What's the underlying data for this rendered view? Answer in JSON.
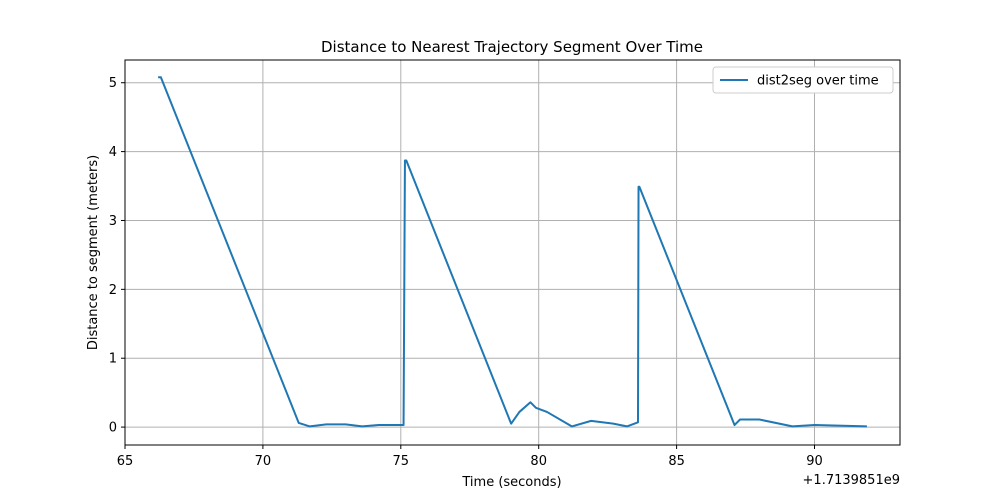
{
  "chart_data": {
    "type": "line",
    "title": "Distance to Nearest Trajectory Segment Over Time",
    "xlabel": "Time (seconds)",
    "ylabel": "Distance to segment (meters)",
    "x_offset_label": "+1.7139851e9",
    "xlim": [
      65,
      93.1
    ],
    "ylim": [
      -0.26,
      5.33
    ],
    "xticks": [
      65,
      70,
      75,
      80,
      85,
      90
    ],
    "yticks": [
      0,
      1,
      2,
      3,
      4,
      5
    ],
    "grid": true,
    "legend": "top-right",
    "series": [
      {
        "name": "dist2seg over time",
        "color": "#1f77b4",
        "x": [
          66.2,
          66.3,
          71.3,
          71.7,
          72.3,
          73.0,
          73.6,
          74.2,
          75.1,
          75.15,
          75.2,
          79.0,
          79.3,
          79.7,
          79.9,
          80.3,
          81.2,
          81.9,
          82.7,
          83.2,
          83.6,
          83.62,
          83.65,
          87.1,
          87.3,
          88.0,
          89.2,
          90.0,
          91.9
        ],
        "y": [
          5.08,
          5.08,
          0.06,
          0.01,
          0.04,
          0.04,
          0.01,
          0.03,
          0.03,
          3.87,
          3.87,
          0.05,
          0.22,
          0.36,
          0.28,
          0.22,
          0.01,
          0.09,
          0.05,
          0.01,
          0.07,
          3.49,
          3.49,
          0.03,
          0.11,
          0.11,
          0.01,
          0.03,
          0.01
        ]
      }
    ]
  }
}
